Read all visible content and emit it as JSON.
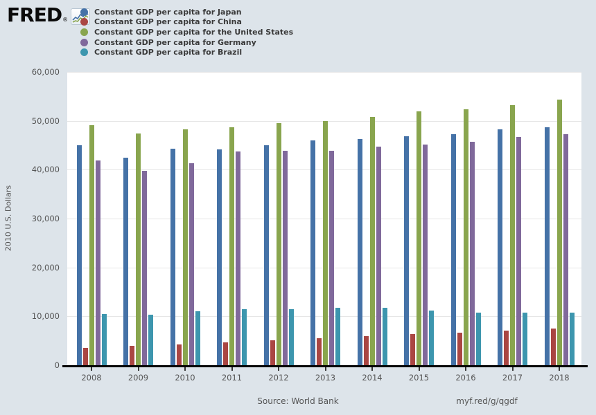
{
  "app": {
    "background_color": "#dde4ea",
    "plot_background_color": "#ffffff",
    "gridline_color": "#e6e6e6"
  },
  "logo": {
    "brand": "FRED",
    "registered": "®"
  },
  "footer": {
    "source": "Source: World Bank",
    "shortlink": "myf.red/g/qgdf"
  },
  "chart_data": {
    "type": "bar",
    "title": "",
    "categories": [
      "2008",
      "2009",
      "2010",
      "2011",
      "2012",
      "2013",
      "2014",
      "2015",
      "2016",
      "2017",
      "2018"
    ],
    "series": [
      {
        "name": "Japan",
        "label": "Constant GDP per capita for Japan",
        "color": "#4572A7",
        "values": [
          45000,
          42500,
          44300,
          44200,
          45000,
          46000,
          46300,
          46800,
          47200,
          48200,
          48700
        ]
      },
      {
        "name": "China",
        "label": "Constant GDP per capita for China",
        "color": "#AA4643",
        "values": [
          3500,
          3900,
          4300,
          4700,
          5100,
          5500,
          5900,
          6300,
          6700,
          7100,
          7500
        ]
      },
      {
        "name": "United States",
        "label": "Constant GDP per capita for the United States",
        "color": "#89A54E",
        "values": [
          49100,
          47400,
          48200,
          48700,
          49500,
          49900,
          50800,
          51900,
          52400,
          53200,
          54400
        ]
      },
      {
        "name": "Germany",
        "label": "Constant GDP per capita for Germany",
        "color": "#80699B",
        "values": [
          41900,
          39700,
          41300,
          43700,
          43900,
          43900,
          44700,
          45200,
          45700,
          46700,
          47200
        ]
      },
      {
        "name": "Brazil",
        "label": "Constant GDP per capita for Brazil",
        "color": "#3D96AE",
        "values": [
          10500,
          10400,
          11000,
          11400,
          11500,
          11700,
          11700,
          11200,
          10800,
          10800,
          10800
        ]
      }
    ],
    "xlabel": "",
    "ylabel": "2010 U.S. Dollars",
    "ylim": [
      0,
      60000
    ],
    "ytick_interval": 10000,
    "ytick_labels": [
      "0",
      "10,000",
      "20,000",
      "30,000",
      "40,000",
      "50,000",
      "60,000"
    ],
    "grid": true,
    "legend_position": "top-left"
  }
}
